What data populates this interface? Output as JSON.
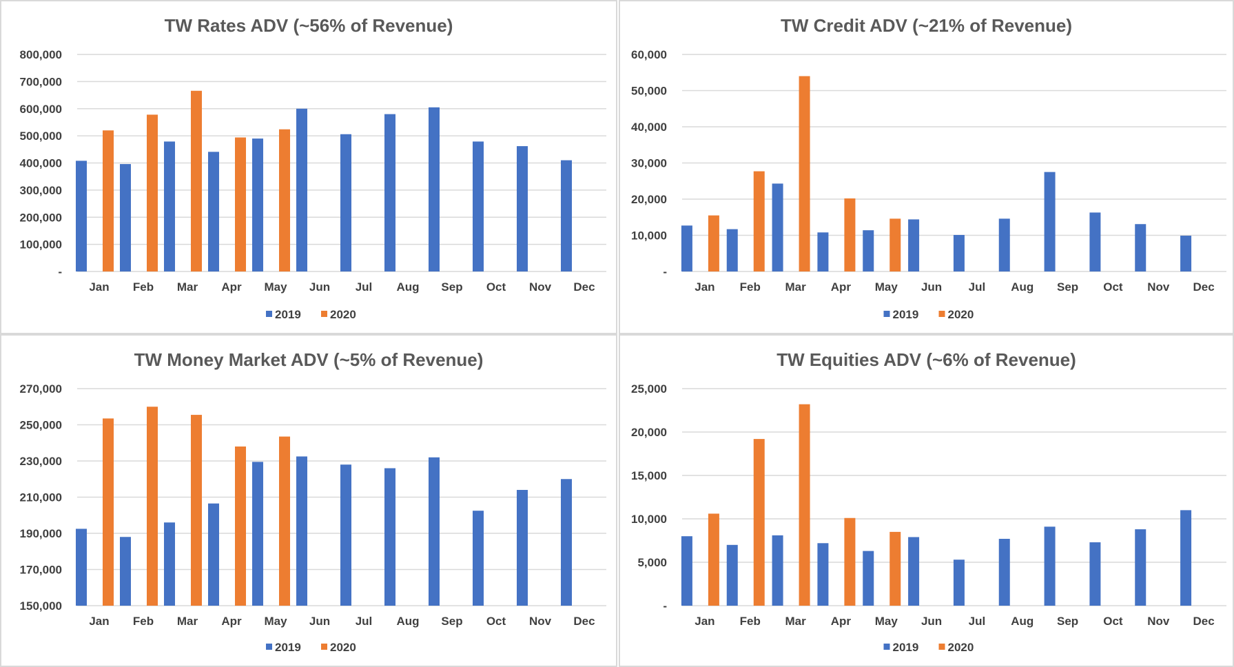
{
  "colors": {
    "series_2019": "#4472c4",
    "series_2020": "#ed7d31",
    "grid": "#d9d9d9",
    "text": "#404040",
    "title": "#595959"
  },
  "chart_data": [
    {
      "type": "bar",
      "title": "TW Rates ADV (~56% of Revenue)",
      "categories": [
        "Jan",
        "Feb",
        "Mar",
        "Apr",
        "May",
        "Jun",
        "Jul",
        "Aug",
        "Sep",
        "Oct",
        "Nov",
        "Dec"
      ],
      "ylim": [
        0,
        800000
      ],
      "yticks": [
        0,
        100000,
        200000,
        300000,
        400000,
        500000,
        600000,
        700000,
        800000
      ],
      "ytick_labels": [
        "-",
        "100,000",
        "200,000",
        "300,000",
        "400,000",
        "500,000",
        "600,000",
        "700,000",
        "800,000"
      ],
      "grid": true,
      "legend": "bottom",
      "series": [
        {
          "name": "2019",
          "values": [
            408000,
            396000,
            479000,
            441000,
            490000,
            600000,
            506000,
            580000,
            605000,
            479000,
            462000,
            410000
          ]
        },
        {
          "name": "2020",
          "values": [
            520000,
            578000,
            666000,
            494000,
            524000,
            null,
            null,
            null,
            null,
            null,
            null,
            null
          ]
        }
      ]
    },
    {
      "type": "bar",
      "title": "TW Credit ADV (~21% of Revenue)",
      "categories": [
        "Jan",
        "Feb",
        "Mar",
        "Apr",
        "May",
        "Jun",
        "Jul",
        "Aug",
        "Sep",
        "Oct",
        "Nov",
        "Dec"
      ],
      "ylim": [
        0,
        60000
      ],
      "yticks": [
        0,
        10000,
        20000,
        30000,
        40000,
        50000,
        60000
      ],
      "ytick_labels": [
        "-",
        "10,000",
        "20,000",
        "30,000",
        "40,000",
        "50,000",
        "60,000"
      ],
      "grid": true,
      "legend": "bottom",
      "series": [
        {
          "name": "2019",
          "values": [
            12700,
            11700,
            24300,
            10800,
            11400,
            14400,
            10100,
            14600,
            27500,
            16300,
            13100,
            9900
          ]
        },
        {
          "name": "2020",
          "values": [
            15500,
            27700,
            54000,
            20200,
            14600,
            null,
            null,
            null,
            null,
            null,
            null,
            null
          ]
        }
      ]
    },
    {
      "type": "bar",
      "title": "TW Money Market ADV (~5% of Revenue)",
      "categories": [
        "Jan",
        "Feb",
        "Mar",
        "Apr",
        "May",
        "Jun",
        "Jul",
        "Aug",
        "Sep",
        "Oct",
        "Nov",
        "Dec"
      ],
      "ylim": [
        150000,
        270000
      ],
      "yticks": [
        150000,
        170000,
        190000,
        210000,
        230000,
        250000,
        270000
      ],
      "ytick_labels": [
        "150,000",
        "170,000",
        "190,000",
        "210,000",
        "230,000",
        "250,000",
        "270,000"
      ],
      "grid": true,
      "legend": "bottom",
      "series": [
        {
          "name": "2019",
          "values": [
            192500,
            188000,
            196000,
            206500,
            229500,
            232500,
            228000,
            226000,
            232000,
            202500,
            214000,
            220000
          ]
        },
        {
          "name": "2020",
          "values": [
            253500,
            260000,
            255500,
            238000,
            243500,
            null,
            null,
            null,
            null,
            null,
            null,
            null
          ]
        }
      ]
    },
    {
      "type": "bar",
      "title": "TW Equities ADV (~6% of Revenue)",
      "categories": [
        "Jan",
        "Feb",
        "Mar",
        "Apr",
        "May",
        "Jun",
        "Jul",
        "Aug",
        "Sep",
        "Oct",
        "Nov",
        "Dec"
      ],
      "ylim": [
        0,
        25000
      ],
      "yticks": [
        0,
        5000,
        10000,
        15000,
        20000,
        25000
      ],
      "ytick_labels": [
        "-",
        "5,000",
        "10,000",
        "15,000",
        "20,000",
        "25,000"
      ],
      "grid": true,
      "legend": "bottom",
      "series": [
        {
          "name": "2019",
          "values": [
            8000,
            7000,
            8100,
            7200,
            6300,
            7900,
            5300,
            7700,
            9100,
            7300,
            8800,
            11000
          ]
        },
        {
          "name": "2020",
          "values": [
            10600,
            19200,
            23200,
            10100,
            8500,
            null,
            null,
            null,
            null,
            null,
            null,
            null
          ]
        }
      ]
    }
  ]
}
